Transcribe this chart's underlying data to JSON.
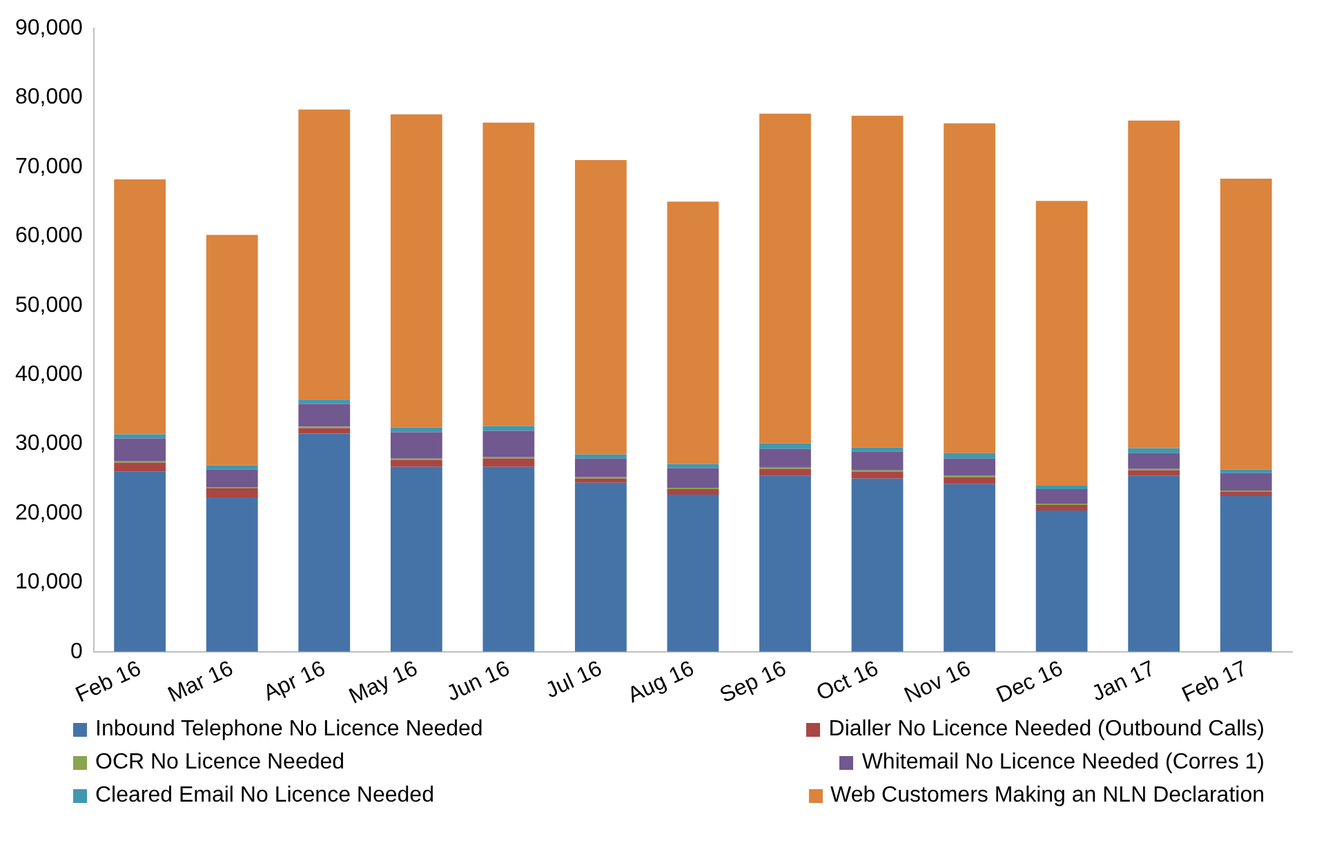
{
  "chart_data": {
    "type": "bar",
    "stacked": true,
    "categories": [
      "Feb 16",
      "Mar 16",
      "Apr 16",
      "May 16",
      "Jun 16",
      "Jul 16",
      "Aug 16",
      "Sep 16",
      "Oct 16",
      "Nov 16",
      "Dec 16",
      "Jan 17",
      "Feb 17"
    ],
    "series": [
      {
        "name": "Inbound Telephone No Licence Needed",
        "color": "#4573a7",
        "values": [
          26000,
          22300,
          31500,
          26700,
          26700,
          24400,
          22700,
          25400,
          25000,
          24200,
          20400,
          25400,
          22500
        ]
      },
      {
        "name": "Dialler No Licence Needed (Outbound Calls)",
        "color": "#aa4643",
        "values": [
          1300,
          1300,
          800,
          1000,
          1200,
          600,
          800,
          1000,
          1000,
          1000,
          800,
          800,
          600
        ]
      },
      {
        "name": "OCR No Licence Needed",
        "color": "#89a54e",
        "values": [
          200,
          200,
          200,
          200,
          200,
          200,
          200,
          200,
          200,
          200,
          200,
          200,
          200
        ]
      },
      {
        "name": "Whitemail No Licence Needed (Corres 1)",
        "color": "#71588f",
        "values": [
          3300,
          2500,
          3300,
          3800,
          3800,
          2700,
          2800,
          2700,
          2700,
          2500,
          2100,
          2300,
          2500
        ]
      },
      {
        "name": "Cleared Email No Licence Needed",
        "color": "#4198af",
        "values": [
          600,
          600,
          600,
          700,
          700,
          600,
          600,
          800,
          600,
          800,
          500,
          700,
          500
        ]
      },
      {
        "name": "Web Customers Making an NLN Declaration",
        "color": "#db843d",
        "values": [
          36800,
          33300,
          41900,
          45200,
          43800,
          42500,
          37900,
          47600,
          47900,
          47600,
          41100,
          47300,
          42000
        ]
      }
    ],
    "ylim": [
      0,
      90000
    ],
    "yticks": [
      {
        "value": 0,
        "label": "0"
      },
      {
        "value": 10000,
        "label": "10,000"
      },
      {
        "value": 20000,
        "label": "20,000"
      },
      {
        "value": 30000,
        "label": "30,000"
      },
      {
        "value": 40000,
        "label": "40,000"
      },
      {
        "value": 50000,
        "label": "50,000"
      },
      {
        "value": 60000,
        "label": "60,000"
      },
      {
        "value": 70000,
        "label": "70,000"
      },
      {
        "value": 80000,
        "label": "80,000"
      },
      {
        "value": 90000,
        "label": "90,000"
      }
    ],
    "grid": false,
    "legend": "bottom"
  }
}
